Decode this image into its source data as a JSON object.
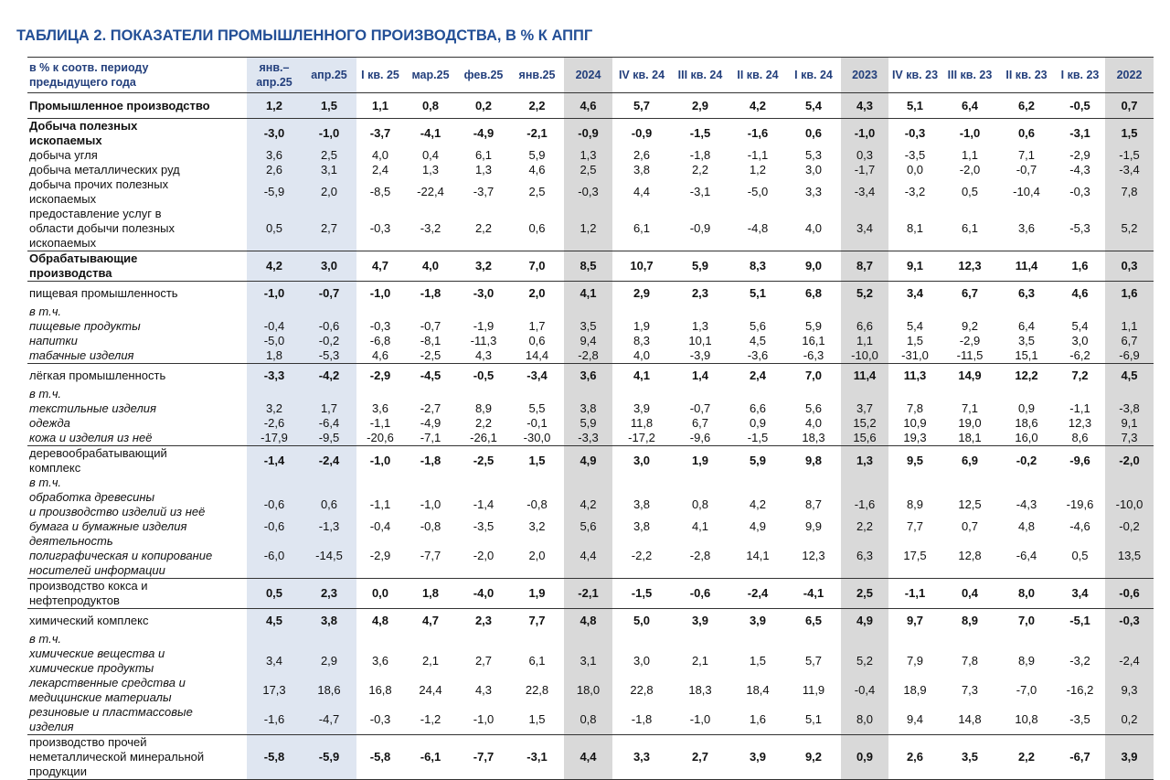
{
  "title": "ТАБЛИЦА 2. ПОКАЗАТЕЛИ ПРОМЫШЛЕННОГО ПРОИЗВОДСТВА, В % К АППГ",
  "header_label": "в % к соотв. периоду\nпредыдущего года",
  "columns": [
    "янв.–\nапр.25",
    "апр.25",
    "I кв. 25",
    "мар.25",
    "фев.25",
    "янв.25",
    "2024",
    "IV кв. 24",
    "III кв. 24",
    "II кв. 24",
    "I кв. 24",
    "2023",
    "IV кв. 23",
    "III кв. 23",
    "II кв. 23",
    "I кв. 23",
    "2022"
  ],
  "shading": {
    "current_year": "#dfe6f1",
    "annual": "#d9d9d9",
    "header_text": "#233f7c"
  },
  "rows": [
    {
      "level": "total",
      "label": "Промышленное производство",
      "values": [
        "1,2",
        "1,5",
        "1,1",
        "0,8",
        "0,2",
        "2,2",
        "4,6",
        "5,7",
        "2,9",
        "4,2",
        "5,4",
        "4,3",
        "5,1",
        "6,4",
        "6,2",
        "-0,5",
        "0,7"
      ]
    },
    {
      "level": "section",
      "bold_label": true,
      "label": "Добыча полезных\nископаемых",
      "values": [
        "-3,0",
        "-1,0",
        "-3,7",
        "-4,1",
        "-4,9",
        "-2,1",
        "-0,9",
        "-0,9",
        "-1,5",
        "-1,6",
        "0,6",
        "-1,0",
        "-0,3",
        "-1,0",
        "0,6",
        "-3,1",
        "1,5"
      ]
    },
    {
      "level": "sub",
      "label": "добыча угля",
      "values": [
        "3,6",
        "2,5",
        "4,0",
        "0,4",
        "6,1",
        "5,9",
        "1,3",
        "2,6",
        "-1,8",
        "-1,1",
        "5,3",
        "0,3",
        "-3,5",
        "1,1",
        "7,1",
        "-2,9",
        "-1,5"
      ]
    },
    {
      "level": "sub",
      "label": "добыча металлических руд",
      "values": [
        "2,6",
        "3,1",
        "2,4",
        "1,3",
        "1,3",
        "4,6",
        "2,5",
        "3,8",
        "2,2",
        "1,2",
        "3,0",
        "-1,7",
        "0,0",
        "-2,0",
        "-0,7",
        "-4,3",
        "-3,4"
      ]
    },
    {
      "level": "sub",
      "label": "добыча прочих полезных\nископаемых",
      "values": [
        "-5,9",
        "2,0",
        "-8,5",
        "-22,4",
        "-3,7",
        "2,5",
        "-0,3",
        "4,4",
        "-3,1",
        "-5,0",
        "3,3",
        "-3,4",
        "-3,2",
        "0,5",
        "-10,4",
        "-0,3",
        "7,8"
      ]
    },
    {
      "level": "sub",
      "label": "предоставление услуг в\nобласти добычи полезных\nископаемых",
      "values": [
        "0,5",
        "2,7",
        "-0,3",
        "-3,2",
        "2,2",
        "0,6",
        "1,2",
        "6,1",
        "-0,9",
        "-4,8",
        "4,0",
        "3,4",
        "8,1",
        "6,1",
        "3,6",
        "-5,3",
        "5,2"
      ]
    },
    {
      "level": "section",
      "bold_label": true,
      "label": "Обрабатывающие\nпроизводства",
      "values": [
        "4,2",
        "3,0",
        "4,7",
        "4,0",
        "3,2",
        "7,0",
        "8,5",
        "10,7",
        "5,9",
        "8,3",
        "9,0",
        "8,7",
        "9,1",
        "12,3",
        "11,4",
        "1,6",
        "0,3"
      ]
    },
    {
      "level": "section",
      "label": "пищевая промышленность",
      "values": [
        "-1,0",
        "-0,7",
        "-1,0",
        "-1,8",
        "-3,0",
        "2,0",
        "4,1",
        "2,9",
        "2,3",
        "5,1",
        "6,8",
        "5,2",
        "3,4",
        "6,7",
        "6,3",
        "4,6",
        "1,6"
      ]
    },
    {
      "level": "note",
      "label": "в т.ч.",
      "values": []
    },
    {
      "level": "item",
      "label": "пищевые продукты",
      "values": [
        "-0,4",
        "-0,6",
        "-0,3",
        "-0,7",
        "-1,9",
        "1,7",
        "3,5",
        "1,9",
        "1,3",
        "5,6",
        "5,9",
        "6,6",
        "5,4",
        "9,2",
        "6,4",
        "5,4",
        "1,1"
      ]
    },
    {
      "level": "item",
      "label": "напитки",
      "values": [
        "-5,0",
        "-0,2",
        "-6,8",
        "-8,1",
        "-11,3",
        "0,6",
        "9,4",
        "8,3",
        "10,1",
        "4,5",
        "16,1",
        "1,1",
        "1,5",
        "-2,9",
        "3,5",
        "3,0",
        "6,7"
      ]
    },
    {
      "level": "item",
      "label": "табачные изделия",
      "values": [
        "1,8",
        "-5,3",
        "4,6",
        "-2,5",
        "4,3",
        "14,4",
        "-2,8",
        "4,0",
        "-3,9",
        "-3,6",
        "-6,3",
        "-10,0",
        "-31,0",
        "-11,5",
        "15,1",
        "-6,2",
        "-6,9"
      ]
    },
    {
      "level": "section",
      "label": "лёгкая промышленность",
      "values": [
        "-3,3",
        "-4,2",
        "-2,9",
        "-4,5",
        "-0,5",
        "-3,4",
        "3,6",
        "4,1",
        "1,4",
        "2,4",
        "7,0",
        "11,4",
        "11,3",
        "14,9",
        "12,2",
        "7,2",
        "4,5"
      ]
    },
    {
      "level": "note",
      "label": "в т.ч.",
      "values": []
    },
    {
      "level": "item",
      "label": "текстильные изделия",
      "values": [
        "3,2",
        "1,7",
        "3,6",
        "-2,7",
        "8,9",
        "5,5",
        "3,8",
        "3,9",
        "-0,7",
        "6,6",
        "5,6",
        "3,7",
        "7,8",
        "7,1",
        "0,9",
        "-1,1",
        "-3,8"
      ]
    },
    {
      "level": "item",
      "label": "одежда",
      "values": [
        "-2,6",
        "-6,4",
        "-1,1",
        "-4,9",
        "2,2",
        "-0,1",
        "5,9",
        "11,8",
        "6,7",
        "0,9",
        "4,0",
        "15,2",
        "10,9",
        "19,0",
        "18,6",
        "12,3",
        "9,1"
      ]
    },
    {
      "level": "item",
      "label": "кожа и изделия из неё",
      "values": [
        "-17,9",
        "-9,5",
        "-20,6",
        "-7,1",
        "-26,1",
        "-30,0",
        "-3,3",
        "-17,2",
        "-9,6",
        "-1,5",
        "18,3",
        "15,6",
        "19,3",
        "18,1",
        "16,0",
        "8,6",
        "7,3"
      ]
    },
    {
      "level": "section",
      "label": "деревообрабатывающий\nкомплекс",
      "values": [
        "-1,4",
        "-2,4",
        "-1,0",
        "-1,8",
        "-2,5",
        "1,5",
        "4,9",
        "3,0",
        "1,9",
        "5,9",
        "9,8",
        "1,3",
        "9,5",
        "6,9",
        "-0,2",
        "-9,6",
        "-2,0"
      ]
    },
    {
      "level": "note",
      "label": "в т.ч.",
      "values": []
    },
    {
      "level": "item",
      "label": "обработка древесины\nи производство изделий из неё",
      "values": [
        "-0,6",
        "0,6",
        "-1,1",
        "-1,0",
        "-1,4",
        "-0,8",
        "4,2",
        "3,8",
        "0,8",
        "4,2",
        "8,7",
        "-1,6",
        "8,9",
        "12,5",
        "-4,3",
        "-19,6",
        "-10,0"
      ]
    },
    {
      "level": "item",
      "label": "бумага и бумажные изделия",
      "values": [
        "-0,6",
        "-1,3",
        "-0,4",
        "-0,8",
        "-3,5",
        "3,2",
        "5,6",
        "3,8",
        "4,1",
        "4,9",
        "9,9",
        "2,2",
        "7,7",
        "0,7",
        "4,8",
        "-4,6",
        "-0,2"
      ]
    },
    {
      "level": "item",
      "label": "деятельность\nполиграфическая и копирование\nносителей информации",
      "values": [
        "-6,0",
        "-14,5",
        "-2,9",
        "-7,7",
        "-2,0",
        "2,0",
        "4,4",
        "-2,2",
        "-2,8",
        "14,1",
        "12,3",
        "6,3",
        "17,5",
        "12,8",
        "-6,4",
        "0,5",
        "13,5"
      ]
    },
    {
      "level": "section",
      "label": "производство кокса и\nнефтепродуктов",
      "values": [
        "0,5",
        "2,3",
        "0,0",
        "1,8",
        "-4,0",
        "1,9",
        "-2,1",
        "-1,5",
        "-0,6",
        "-2,4",
        "-4,1",
        "2,5",
        "-1,1",
        "0,4",
        "8,0",
        "3,4",
        "-0,6"
      ]
    },
    {
      "level": "section",
      "label": "химический комплекс",
      "values": [
        "4,5",
        "3,8",
        "4,8",
        "4,7",
        "2,3",
        "7,7",
        "4,8",
        "5,0",
        "3,9",
        "3,9",
        "6,5",
        "4,9",
        "9,7",
        "8,9",
        "7,0",
        "-5,1",
        "-0,3"
      ]
    },
    {
      "level": "note",
      "label": "в т.ч.",
      "values": []
    },
    {
      "level": "item",
      "label": "химические вещества и\nхимические продукты",
      "values": [
        "3,4",
        "2,9",
        "3,6",
        "2,1",
        "2,7",
        "6,1",
        "3,1",
        "3,0",
        "2,1",
        "1,5",
        "5,7",
        "5,2",
        "7,9",
        "7,8",
        "8,9",
        "-3,2",
        "-2,4"
      ]
    },
    {
      "level": "item",
      "label": "лекарственные средства и\nмедицинские материалы",
      "values": [
        "17,3",
        "18,6",
        "16,8",
        "24,4",
        "4,3",
        "22,8",
        "18,0",
        "22,8",
        "18,3",
        "18,4",
        "11,9",
        "-0,4",
        "18,9",
        "7,3",
        "-7,0",
        "-16,2",
        "9,3"
      ]
    },
    {
      "level": "item",
      "label": "резиновые и пластмассовые\nизделия",
      "values": [
        "-1,6",
        "-4,7",
        "-0,3",
        "-1,2",
        "-1,0",
        "1,5",
        "0,8",
        "-1,8",
        "-1,0",
        "1,6",
        "5,1",
        "8,0",
        "9,4",
        "14,8",
        "10,8",
        "-3,5",
        "0,2"
      ]
    },
    {
      "level": "section",
      "label": "производство прочей\nнеметаллической минеральной\nпродукции",
      "values": [
        "-5,8",
        "-5,9",
        "-5,8",
        "-6,1",
        "-7,7",
        "-3,1",
        "4,4",
        "3,3",
        "2,7",
        "3,9",
        "9,2",
        "0,9",
        "2,6",
        "3,5",
        "2,2",
        "-6,7",
        "3,9"
      ]
    }
  ]
}
